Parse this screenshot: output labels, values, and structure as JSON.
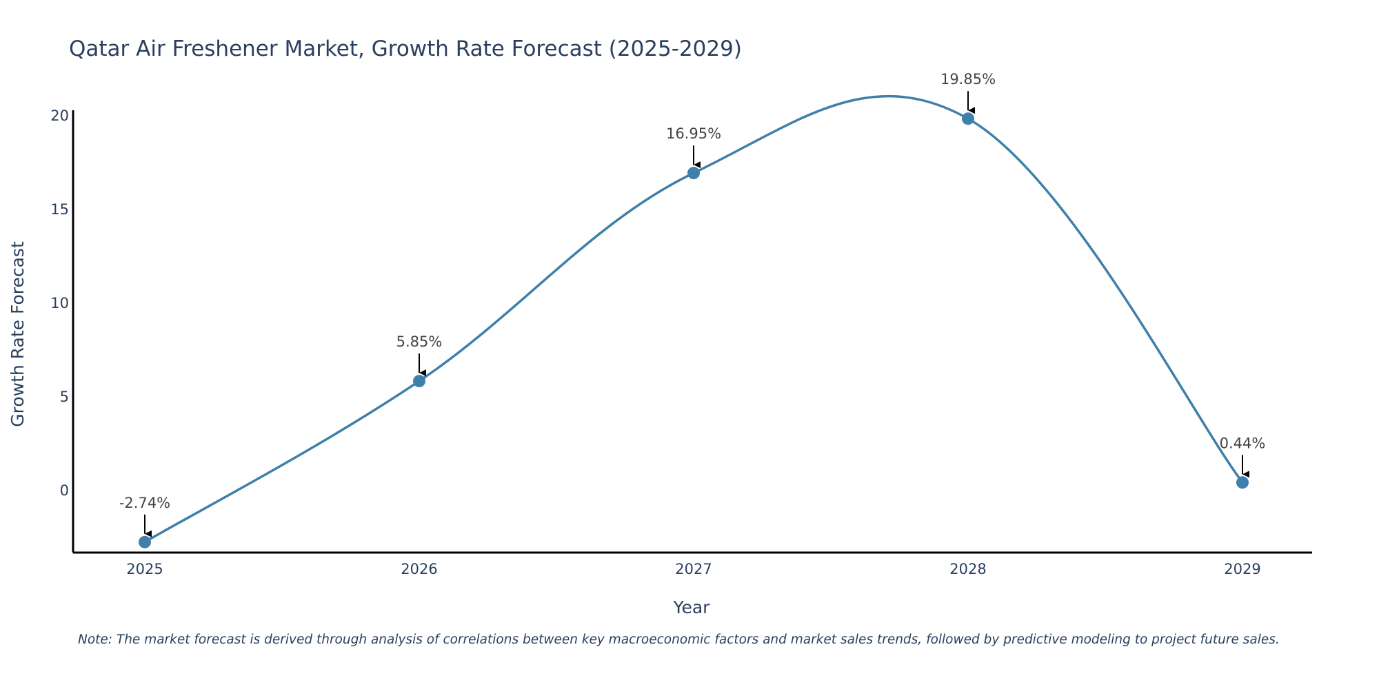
{
  "colors": {
    "line": "#3f7fab",
    "marker": "#3f7fab",
    "text": "#2a3f5f",
    "axis": "#000000",
    "annotation": "#444444"
  },
  "chart_data": {
    "type": "line",
    "title": "Qatar Air Freshener Market, Growth Rate Forecast (2025-2029)",
    "xlabel": "Year",
    "ylabel": "Growth Rate Forecast",
    "categories": [
      "2025",
      "2026",
      "2027",
      "2028",
      "2029"
    ],
    "series": [
      {
        "name": "Growth Rate Forecast",
        "values": [
          -2.74,
          5.85,
          16.95,
          19.85,
          0.44
        ]
      }
    ],
    "annotations": [
      "-2.74%",
      "5.85%",
      "16.95%",
      "19.85%",
      "0.44%"
    ],
    "ylim": [
      -3.3,
      20.3
    ],
    "yticks": [
      0,
      5,
      10,
      15,
      20
    ],
    "grid": false,
    "smoothing": "spline"
  },
  "note": "Note: The market forecast is derived through analysis of correlations between key macroeconomic factors and market sales trends, followed by predictive modeling to project future sales."
}
